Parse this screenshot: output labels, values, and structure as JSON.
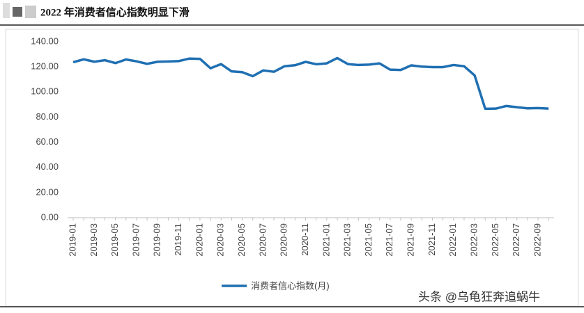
{
  "chart_data": {
    "type": "line",
    "title": "2022 年消费者信心指数明显下滑",
    "watermark": "头条 @乌龟狂奔追蜗牛",
    "categories": [
      "2019-01",
      null,
      "2019-03",
      null,
      "2019-05",
      null,
      "2019-07",
      null,
      "2019-09",
      null,
      "2019-11",
      null,
      "2020-01",
      null,
      "2020-03",
      null,
      "2020-05",
      null,
      "2020-07",
      null,
      "2020-09",
      null,
      "2020-11",
      null,
      "2021-01",
      null,
      "2021-03",
      null,
      "2021-05",
      null,
      "2021-07",
      null,
      "2021-09",
      null,
      "2021-11",
      null,
      "2022-01",
      null,
      "2022-03",
      null,
      "2022-05",
      null,
      "2022-07",
      null,
      "2022-09",
      null
    ],
    "series": [
      {
        "name": "消费者信心指数(月)",
        "color": "#1f6fb2",
        "values": [
          123.7,
          126.0,
          124.1,
          125.3,
          123.0,
          125.9,
          124.4,
          122.4,
          124.1,
          124.3,
          124.6,
          126.6,
          126.4,
          118.9,
          122.2,
          116.4,
          115.8,
          112.6,
          117.2,
          116.1,
          120.5,
          121.3,
          124.0,
          122.1,
          122.8,
          127.0,
          122.2,
          121.5,
          121.8,
          122.8,
          117.8,
          117.5,
          121.2,
          120.2,
          119.8,
          119.8,
          121.5,
          120.5,
          113.2,
          86.7,
          86.8,
          88.9,
          87.9,
          87.0,
          87.2,
          86.8
        ]
      }
    ],
    "ylim": [
      0,
      140
    ],
    "yticks": [
      {
        "value": 0,
        "label": "0.00"
      },
      {
        "value": 20,
        "label": "20.00"
      },
      {
        "value": 40,
        "label": "40.00"
      },
      {
        "value": 60,
        "label": "60.00"
      },
      {
        "value": 80,
        "label": "80.00"
      },
      {
        "value": 100,
        "label": "100.00"
      },
      {
        "value": 120,
        "label": "120.00"
      },
      {
        "value": 140,
        "label": "140.00"
      }
    ],
    "grid": false
  }
}
